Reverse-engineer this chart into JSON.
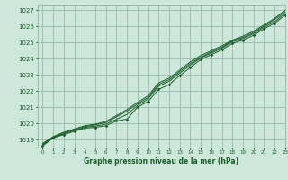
{
  "bg_color": "#cde8da",
  "grid_color": "#99bbaa",
  "line_color": "#1a5c2a",
  "title": "Graphe pression niveau de la mer (hPa)",
  "xlim": [
    -0.5,
    23
  ],
  "ylim": [
    1018.5,
    1027.3
  ],
  "yticks": [
    1019,
    1020,
    1021,
    1022,
    1023,
    1024,
    1025,
    1026,
    1027
  ],
  "xticks": [
    0,
    1,
    2,
    3,
    4,
    5,
    6,
    7,
    8,
    9,
    10,
    11,
    12,
    13,
    14,
    15,
    16,
    17,
    18,
    19,
    20,
    21,
    22,
    23
  ],
  "series": [
    [
      1018.6,
      1019.1,
      1019.3,
      1019.5,
      1019.7,
      1019.75,
      1019.85,
      1020.15,
      1020.25,
      1021.0,
      1021.35,
      1022.1,
      1022.4,
      1022.95,
      1023.45,
      1023.95,
      1024.25,
      1024.55,
      1024.95,
      1025.15,
      1025.45,
      1025.85,
      1026.2,
      1026.7
    ],
    [
      1018.65,
      1019.12,
      1019.35,
      1019.55,
      1019.75,
      1019.82,
      1019.95,
      1020.25,
      1020.55,
      1021.1,
      1021.5,
      1022.3,
      1022.6,
      1023.1,
      1023.6,
      1024.05,
      1024.35,
      1024.65,
      1025.05,
      1025.25,
      1025.55,
      1025.95,
      1026.3,
      1026.8
    ],
    [
      1018.7,
      1019.15,
      1019.4,
      1019.6,
      1019.8,
      1019.9,
      1020.05,
      1020.4,
      1020.75,
      1021.2,
      1021.6,
      1022.4,
      1022.7,
      1023.2,
      1023.7,
      1024.1,
      1024.42,
      1024.72,
      1025.1,
      1025.32,
      1025.62,
      1026.02,
      1026.42,
      1026.9
    ],
    [
      1018.75,
      1019.18,
      1019.45,
      1019.65,
      1019.85,
      1019.95,
      1020.12,
      1020.48,
      1020.85,
      1021.3,
      1021.7,
      1022.5,
      1022.8,
      1023.3,
      1023.8,
      1024.2,
      1024.5,
      1024.8,
      1025.15,
      1025.4,
      1025.7,
      1026.1,
      1026.5,
      1027.0
    ]
  ]
}
